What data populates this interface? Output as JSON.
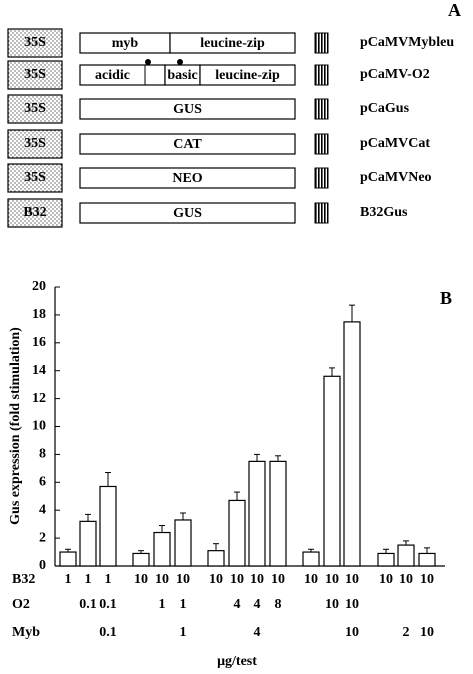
{
  "panel_a": {
    "label": "A",
    "constructs": [
      {
        "promoter": "35S",
        "segments": [
          "myb",
          "leucine-zip"
        ],
        "name": "pCaMVMybleu"
      },
      {
        "promoter": "35S",
        "segments": [
          "acidic",
          "basic",
          "leucine-zip"
        ],
        "name": "pCaMV-O2"
      },
      {
        "promoter": "35S",
        "segments": [
          "GUS"
        ],
        "name": "pCaGus"
      },
      {
        "promoter": "35S",
        "segments": [
          "CAT"
        ],
        "name": "pCaMVCat"
      },
      {
        "promoter": "35S",
        "segments": [
          "NEO"
        ],
        "name": "pCaMVNeo"
      },
      {
        "promoter": "B32",
        "segments": [
          "GUS"
        ],
        "name": "B32Gus"
      }
    ]
  },
  "chart_data": {
    "type": "bar",
    "panel_label": "B",
    "y_label": "Gus expression (fold stimulation)",
    "x_label": "μg/test",
    "values": [
      1.0,
      3.2,
      5.7,
      0.9,
      2.4,
      3.3,
      1.1,
      4.7,
      7.5,
      7.5,
      1.0,
      13.6,
      17.5,
      0.9,
      1.5,
      0.9
    ],
    "errors": [
      0.2,
      0.5,
      1.0,
      0.2,
      0.5,
      0.5,
      0.5,
      0.6,
      0.5,
      0.4,
      0.2,
      0.6,
      1.2,
      0.3,
      0.3,
      0.4
    ],
    "color": "#ffffff",
    "ylim": [
      0,
      20
    ],
    "yticks": [
      0,
      2,
      4,
      6,
      8,
      10,
      12,
      14,
      16,
      18,
      20
    ],
    "table": [
      {
        "label": "B32",
        "values": [
          1,
          1,
          1,
          10,
          10,
          10,
          10,
          10,
          10,
          10,
          10,
          10,
          10,
          10,
          10,
          10
        ]
      },
      {
        "label": "O2",
        "values": [
          null,
          0.1,
          0.1,
          null,
          1,
          1,
          null,
          4,
          4,
          8,
          null,
          10,
          10,
          null,
          null,
          null
        ]
      },
      {
        "label": "Myb",
        "values": [
          null,
          null,
          0.1,
          null,
          null,
          1,
          null,
          null,
          4,
          null,
          null,
          null,
          10,
          null,
          2,
          10
        ]
      }
    ]
  }
}
